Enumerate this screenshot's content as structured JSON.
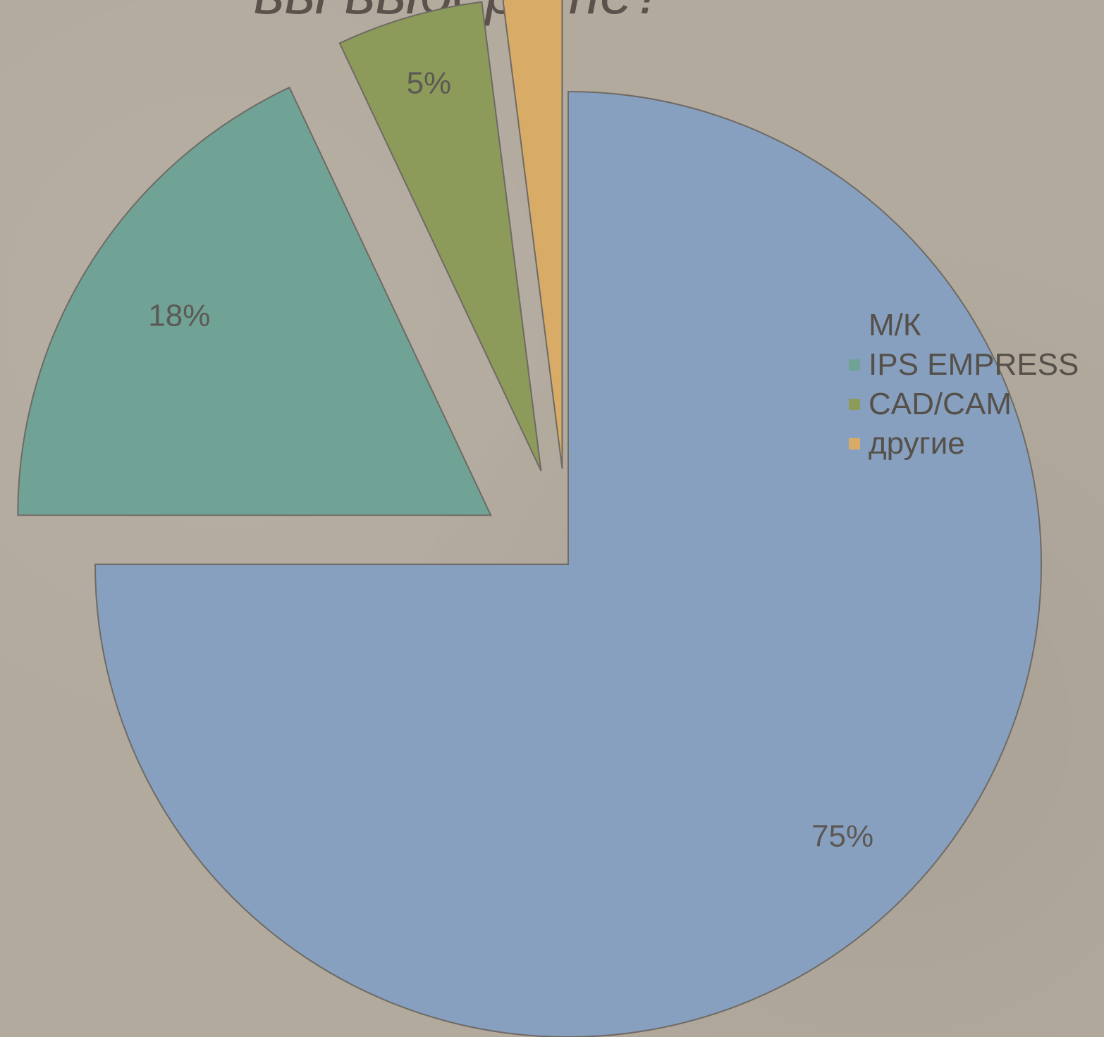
{
  "title": "вы выберете?",
  "chart_data": {
    "type": "pie",
    "categories": [
      "М/К",
      "IPS EMPRESS",
      "CAD/CAM",
      "другие"
    ],
    "values": [
      75,
      18,
      5,
      2
    ],
    "data_labels": [
      "75%",
      "18%",
      "5%",
      ""
    ],
    "colors": [
      "#88a0bf",
      "#70a295",
      "#8c9a5a",
      "#d8ab67"
    ],
    "exploded": true,
    "legend_position": "right"
  }
}
